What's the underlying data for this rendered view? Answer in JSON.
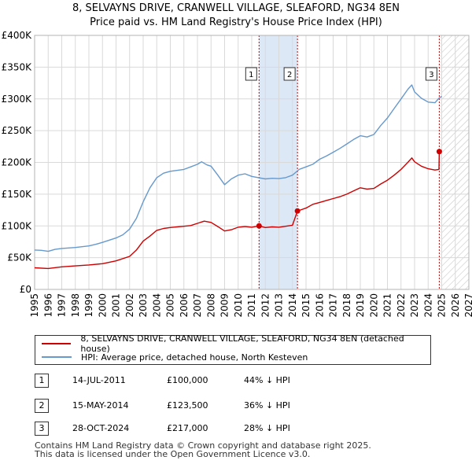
{
  "title": {
    "line1": "8, SELVAYNS DRIVE, CRANWELL VILLAGE, SLEAFORD, NG34 8EN",
    "line2": "Price paid vs. HM Land Registry's House Price Index (HPI)"
  },
  "chart_data": {
    "type": "line",
    "x_range": [
      1995,
      2027
    ],
    "y_range": [
      0,
      400000
    ],
    "y_ticks": [
      "£0",
      "£50K",
      "£100K",
      "£150K",
      "£200K",
      "£250K",
      "£300K",
      "£350K",
      "£400K"
    ],
    "x_ticks": [
      "1995",
      "1996",
      "1997",
      "1998",
      "1999",
      "2000",
      "2001",
      "2002",
      "2003",
      "2004",
      "2005",
      "2006",
      "2007",
      "2008",
      "2009",
      "2010",
      "2011",
      "2012",
      "2013",
      "2014",
      "2015",
      "2016",
      "2017",
      "2018",
      "2019",
      "2020",
      "2021",
      "2022",
      "2023",
      "2024",
      "2025",
      "2026",
      "2027"
    ],
    "shaded_period": [
      2011.54,
      2014.37
    ],
    "forecast_start": 2025.0,
    "colors": {
      "price": "#cc0000",
      "hpi": "#6699cc",
      "shade": "#dde8f7",
      "marker_line": "#cc0000"
    },
    "series": [
      {
        "name": "8, SELVAYNS DRIVE, CRANWELL VILLAGE, SLEAFORD, NG34 8EN (detached house)",
        "key": "price",
        "points": [
          [
            1995.0,
            34000
          ],
          [
            1996.0,
            33000
          ],
          [
            1997.0,
            35500
          ],
          [
            1998.0,
            37000
          ],
          [
            1999.0,
            38500
          ],
          [
            2000.0,
            40500
          ],
          [
            2001.0,
            45000
          ],
          [
            2002.0,
            52000
          ],
          [
            2002.5,
            62000
          ],
          [
            2003.0,
            76000
          ],
          [
            2003.5,
            84000
          ],
          [
            2004.0,
            93000
          ],
          [
            2004.5,
            96000
          ],
          [
            2005.0,
            97500
          ],
          [
            2006.0,
            99500
          ],
          [
            2006.5,
            100500
          ],
          [
            2007.0,
            104000
          ],
          [
            2007.5,
            107500
          ],
          [
            2008.0,
            105500
          ],
          [
            2008.5,
            99000
          ],
          [
            2009.0,
            92000
          ],
          [
            2009.5,
            94000
          ],
          [
            2010.0,
            98000
          ],
          [
            2010.5,
            99000
          ],
          [
            2011.0,
            98000
          ],
          [
            2011.54,
            100000
          ],
          [
            2012.0,
            97500
          ],
          [
            2012.5,
            98500
          ],
          [
            2013.0,
            98000
          ],
          [
            2013.5,
            99500
          ],
          [
            2014.0,
            101000
          ],
          [
            2014.37,
            123500
          ],
          [
            2015.0,
            128000
          ],
          [
            2015.5,
            134000
          ],
          [
            2016.0,
            137000
          ],
          [
            2016.5,
            140000
          ],
          [
            2017.0,
            143000
          ],
          [
            2017.5,
            146000
          ],
          [
            2018.0,
            150000
          ],
          [
            2018.5,
            155000
          ],
          [
            2019.0,
            160000
          ],
          [
            2019.5,
            158000
          ],
          [
            2020.0,
            159000
          ],
          [
            2020.5,
            166000
          ],
          [
            2021.0,
            172000
          ],
          [
            2021.5,
            180000
          ],
          [
            2022.0,
            189000
          ],
          [
            2022.5,
            200000
          ],
          [
            2022.8,
            207000
          ],
          [
            2023.0,
            201000
          ],
          [
            2023.5,
            194000
          ],
          [
            2024.0,
            190000
          ],
          [
            2024.5,
            188000
          ],
          [
            2024.8,
            189000
          ],
          [
            2024.82,
            217000
          ],
          [
            2025.0,
            219000
          ]
        ]
      },
      {
        "name": "HPI: Average price, detached house, North Kesteven",
        "key": "hpi",
        "points": [
          [
            1995.0,
            62000
          ],
          [
            1995.5,
            61500
          ],
          [
            1996.0,
            60000
          ],
          [
            1996.5,
            63000
          ],
          [
            1997.0,
            64500
          ],
          [
            1998.0,
            66000
          ],
          [
            1999.0,
            68500
          ],
          [
            1999.5,
            71000
          ],
          [
            2000.0,
            74000
          ],
          [
            2001.0,
            81000
          ],
          [
            2001.5,
            86000
          ],
          [
            2002.0,
            95000
          ],
          [
            2002.5,
            112000
          ],
          [
            2003.0,
            138000
          ],
          [
            2003.5,
            160000
          ],
          [
            2004.0,
            176000
          ],
          [
            2004.5,
            183000
          ],
          [
            2005.0,
            186000
          ],
          [
            2006.0,
            189000
          ],
          [
            2006.5,
            193000
          ],
          [
            2007.0,
            197000
          ],
          [
            2007.3,
            201000
          ],
          [
            2007.7,
            196000
          ],
          [
            2008.0,
            194000
          ],
          [
            2008.5,
            180000
          ],
          [
            2009.0,
            165000
          ],
          [
            2009.5,
            174000
          ],
          [
            2010.0,
            180000
          ],
          [
            2010.5,
            182000
          ],
          [
            2011.0,
            178000
          ],
          [
            2011.5,
            176000
          ],
          [
            2012.0,
            174000
          ],
          [
            2012.5,
            175000
          ],
          [
            2013.0,
            174500
          ],
          [
            2013.5,
            176000
          ],
          [
            2014.0,
            180000
          ],
          [
            2014.5,
            189000
          ],
          [
            2015.0,
            193000
          ],
          [
            2015.5,
            197000
          ],
          [
            2016.0,
            205000
          ],
          [
            2016.5,
            210000
          ],
          [
            2017.0,
            216000
          ],
          [
            2017.5,
            222000
          ],
          [
            2018.0,
            229000
          ],
          [
            2018.5,
            236000
          ],
          [
            2019.0,
            242000
          ],
          [
            2019.5,
            240000
          ],
          [
            2020.0,
            244000
          ],
          [
            2020.5,
            258000
          ],
          [
            2021.0,
            270000
          ],
          [
            2021.5,
            285000
          ],
          [
            2022.0,
            300000
          ],
          [
            2022.5,
            315000
          ],
          [
            2022.8,
            322000
          ],
          [
            2023.0,
            311000
          ],
          [
            2023.5,
            301000
          ],
          [
            2024.0,
            295000
          ],
          [
            2024.5,
            294000
          ],
          [
            2024.8,
            301000
          ],
          [
            2025.0,
            304000
          ]
        ]
      }
    ],
    "sales": [
      {
        "label": "1",
        "x": 2011.54,
        "price": 100000
      },
      {
        "label": "2",
        "x": 2014.37,
        "price": 123500
      },
      {
        "label": "3",
        "x": 2024.82,
        "price": 217000
      }
    ]
  },
  "legend": {
    "price_label": "8, SELVAYNS DRIVE, CRANWELL VILLAGE, SLEAFORD, NG34 8EN (detached house)",
    "hpi_label": "HPI: Average price, detached house, North Kesteven"
  },
  "transactions": [
    {
      "num": "1",
      "date": "14-JUL-2011",
      "price": "£100,000",
      "hpi": "44% ↓ HPI"
    },
    {
      "num": "2",
      "date": "15-MAY-2014",
      "price": "£123,500",
      "hpi": "36% ↓ HPI"
    },
    {
      "num": "3",
      "date": "28-OCT-2024",
      "price": "£217,000",
      "hpi": "28% ↓ HPI"
    }
  ],
  "footer": {
    "line1": "Contains HM Land Registry data © Crown copyright and database right 2025.",
    "line2": "This data is licensed under the Open Government Licence v3.0."
  }
}
